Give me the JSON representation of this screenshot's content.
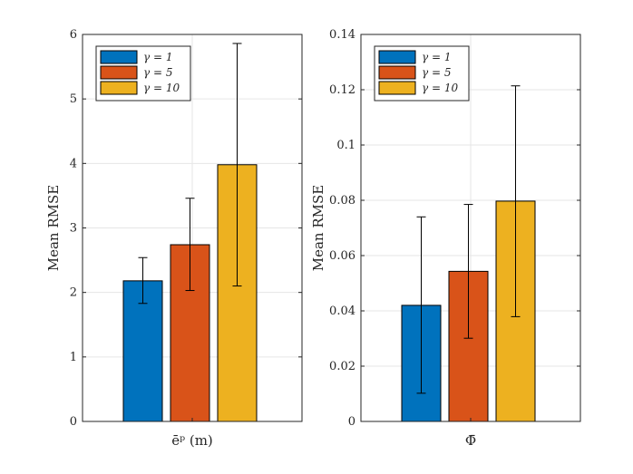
{
  "chart_data": [
    {
      "type": "bar",
      "categories": [
        "ēᵖ (m)"
      ],
      "xlabel": "ēᵖ (m)",
      "ylabel": "Mean RMSE",
      "ylim": [
        0,
        6
      ],
      "yticks": [
        "0",
        "1",
        "2",
        "3",
        "4",
        "5",
        "6"
      ],
      "grid": true,
      "legend_position": "top-left",
      "series": [
        {
          "name": "γ = 1",
          "value": 2.18,
          "err_low": 1.83,
          "err_high": 2.54,
          "color": "#0072BD"
        },
        {
          "name": "γ = 5",
          "value": 2.74,
          "err_low": 2.03,
          "err_high": 3.46,
          "color": "#D95319"
        },
        {
          "name": "γ = 10",
          "value": 3.98,
          "err_low": 2.1,
          "err_high": 5.86,
          "color": "#EDB120"
        }
      ]
    },
    {
      "type": "bar",
      "categories": [
        "Φ̄"
      ],
      "xlabel": "Φ̄",
      "ylabel": "Mean RMSE",
      "ylim": [
        0,
        0.14
      ],
      "yticks": [
        "0",
        "0.02",
        "0.04",
        "0.06",
        "0.08",
        "0.1",
        "0.12",
        "0.14"
      ],
      "grid": true,
      "legend_position": "top-left",
      "series": [
        {
          "name": "γ = 1",
          "value": 0.042,
          "err_low": 0.0102,
          "err_high": 0.074,
          "color": "#0072BD"
        },
        {
          "name": "γ = 5",
          "value": 0.0543,
          "err_low": 0.0301,
          "err_high": 0.0785,
          "color": "#D95319"
        },
        {
          "name": "γ = 10",
          "value": 0.0797,
          "err_low": 0.0379,
          "err_high": 0.1214,
          "color": "#EDB120"
        }
      ]
    }
  ]
}
